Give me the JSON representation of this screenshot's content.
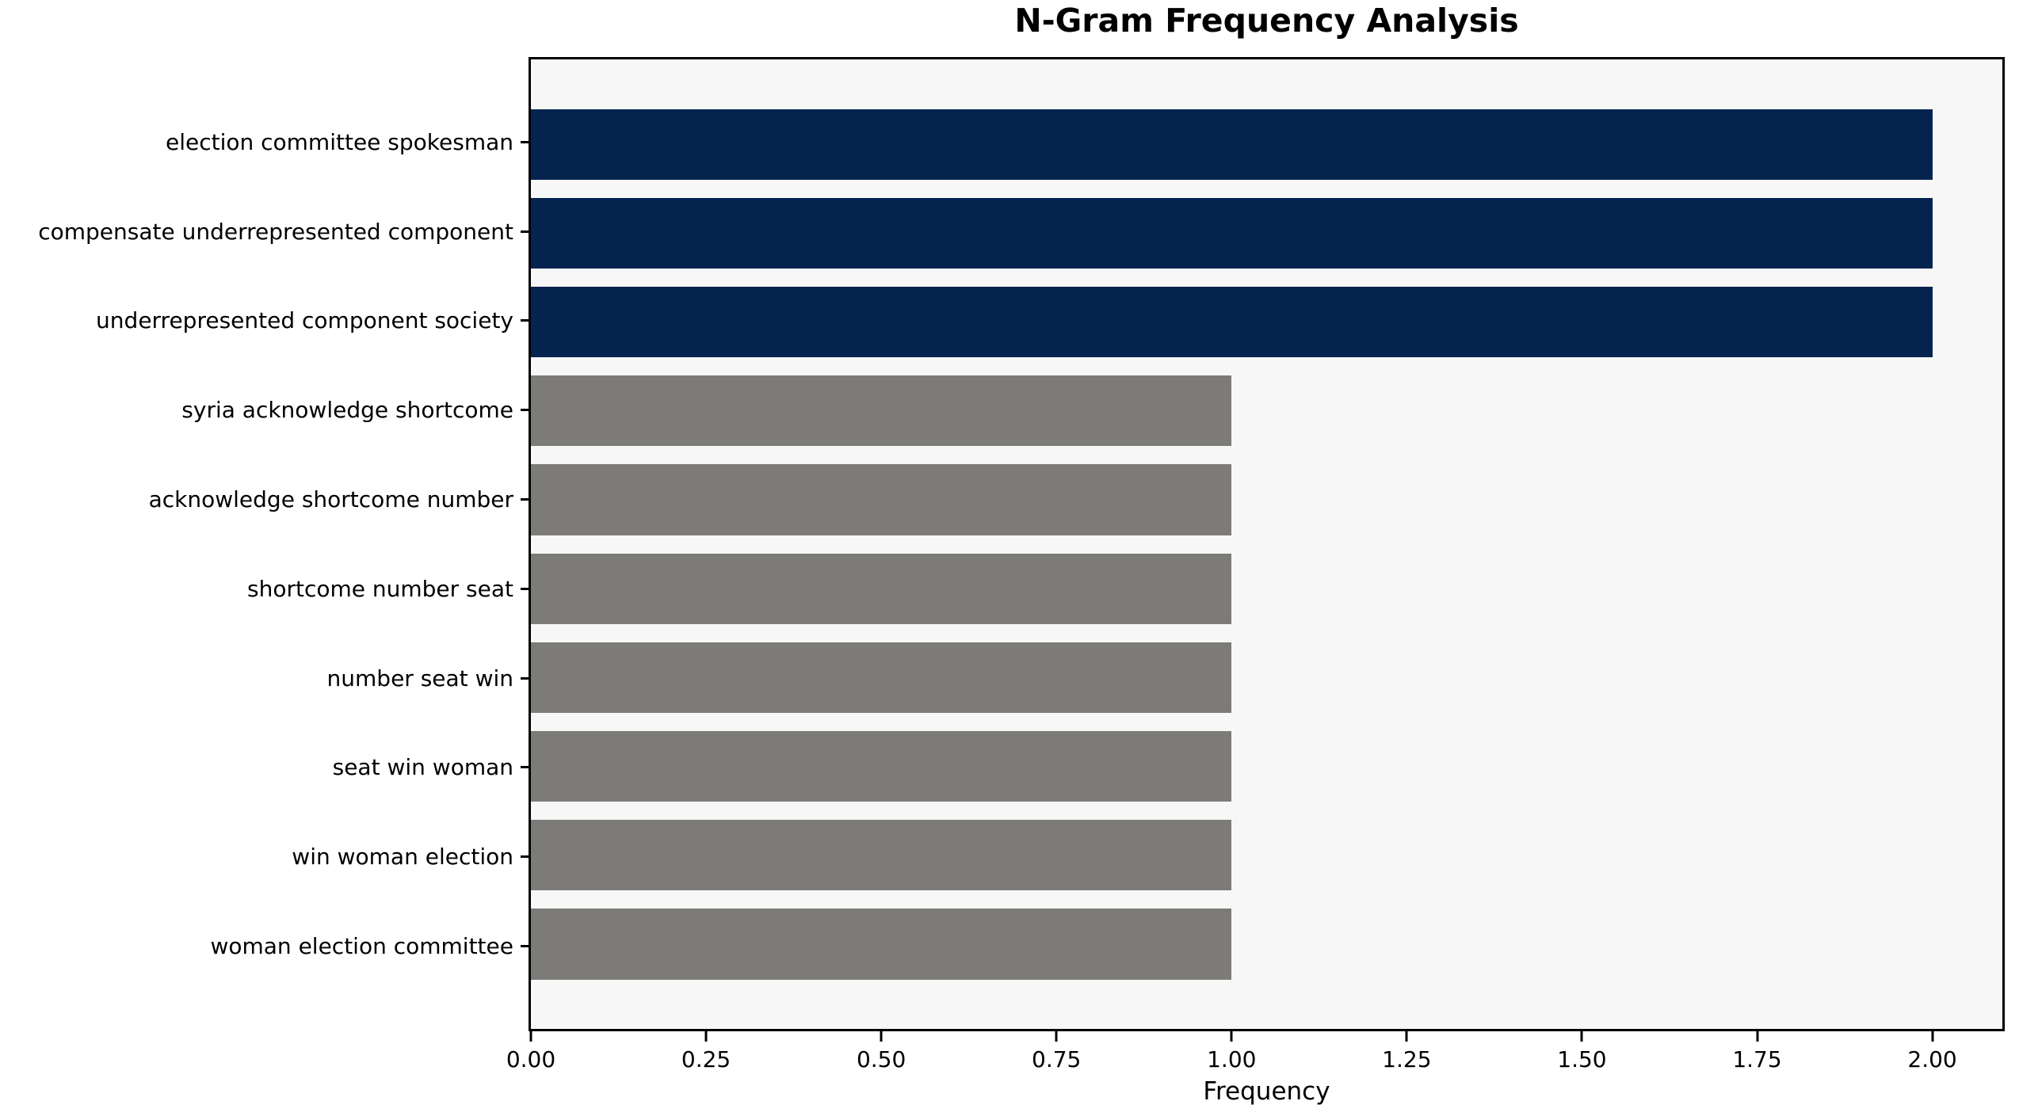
{
  "chart_data": {
    "type": "bar",
    "orientation": "horizontal",
    "title": "N-Gram Frequency Analysis",
    "xlabel": "Frequency",
    "ylabel": "",
    "categories": [
      "election committee spokesman",
      "compensate underrepresented component",
      "underrepresented component society",
      "syria acknowledge shortcome",
      "acknowledge shortcome number",
      "shortcome number seat",
      "number seat win",
      "seat win woman",
      "win woman election",
      "woman election committee"
    ],
    "values": [
      2,
      2,
      2,
      1,
      1,
      1,
      1,
      1,
      1,
      1
    ],
    "bar_colors": [
      "#04234e",
      "#04234e",
      "#04234e",
      "#7c7b77",
      "#7c7b77",
      "#7c7b77",
      "#7c7b77",
      "#7c7b77",
      "#7c7b77",
      "#7c7b77"
    ],
    "xlim": [
      0,
      2.1
    ],
    "xtick_labels": [
      "0.00",
      "0.25",
      "0.50",
      "0.75",
      "1.00",
      "1.25",
      "1.50",
      "1.75",
      "2.00"
    ],
    "xtick_values": [
      0,
      0.25,
      0.5,
      0.75,
      1.0,
      1.25,
      1.5,
      1.75,
      2.0
    ],
    "grid": false,
    "legend": null,
    "colors": {
      "highlight_bar": "#04234e",
      "default_bar": "#7c7b77",
      "plot_background": "#f7f7f7",
      "figure_background": "#ffffff",
      "spine": "#000000",
      "text": "#000000"
    }
  }
}
